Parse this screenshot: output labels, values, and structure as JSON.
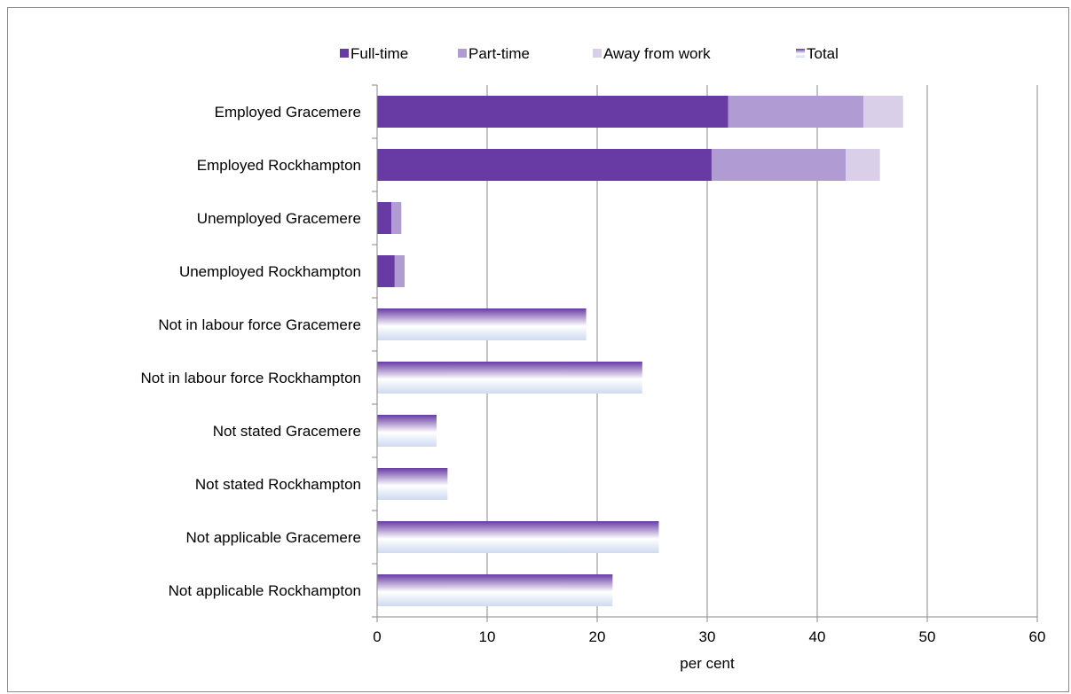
{
  "chart_data": {
    "type": "bar",
    "orientation": "horizontal",
    "stacked": true,
    "categories": [
      "Employed Gracemere",
      "Employed Rockhampton",
      "Unemployed Gracemere",
      "Unemployed Rockhampton",
      "Not in labour force Gracemere",
      "Not in labour force Rockhampton",
      "Not stated Gracemere",
      "Not stated Rockhampton",
      "Not applicable Gracemere",
      "Not applicable Rockhampton"
    ],
    "series": [
      {
        "name": "Full-time",
        "color": "#673ba3",
        "values": [
          31.9,
          30.4,
          1.3,
          1.6,
          0,
          0,
          0,
          0,
          0,
          0
        ]
      },
      {
        "name": "Part-time",
        "color": "#b09bd3",
        "values": [
          12.3,
          12.2,
          0.9,
          0.9,
          0,
          0,
          0,
          0,
          0,
          0
        ]
      },
      {
        "name": "Away from work",
        "color": "#d9cfe8",
        "values": [
          3.6,
          3.1,
          0,
          0,
          0,
          0,
          0,
          0,
          0,
          0
        ]
      },
      {
        "name": "Total",
        "color": "#673ba3",
        "gradient": [
          "#673ba3",
          "#ffffff",
          "#cfdaf0"
        ],
        "values": [
          0,
          0,
          0,
          0,
          19.0,
          24.1,
          5.4,
          6.4,
          25.6,
          21.4
        ]
      }
    ],
    "xlabel": "per cent",
    "ylabel": "",
    "xlim": [
      0,
      60
    ],
    "xticks": [
      "0",
      "10",
      "20",
      "30",
      "40",
      "50",
      "60"
    ],
    "xtick_values": [
      0,
      10,
      20,
      30,
      40,
      50,
      60
    ],
    "grid": "vertical",
    "legend_position": "top"
  }
}
